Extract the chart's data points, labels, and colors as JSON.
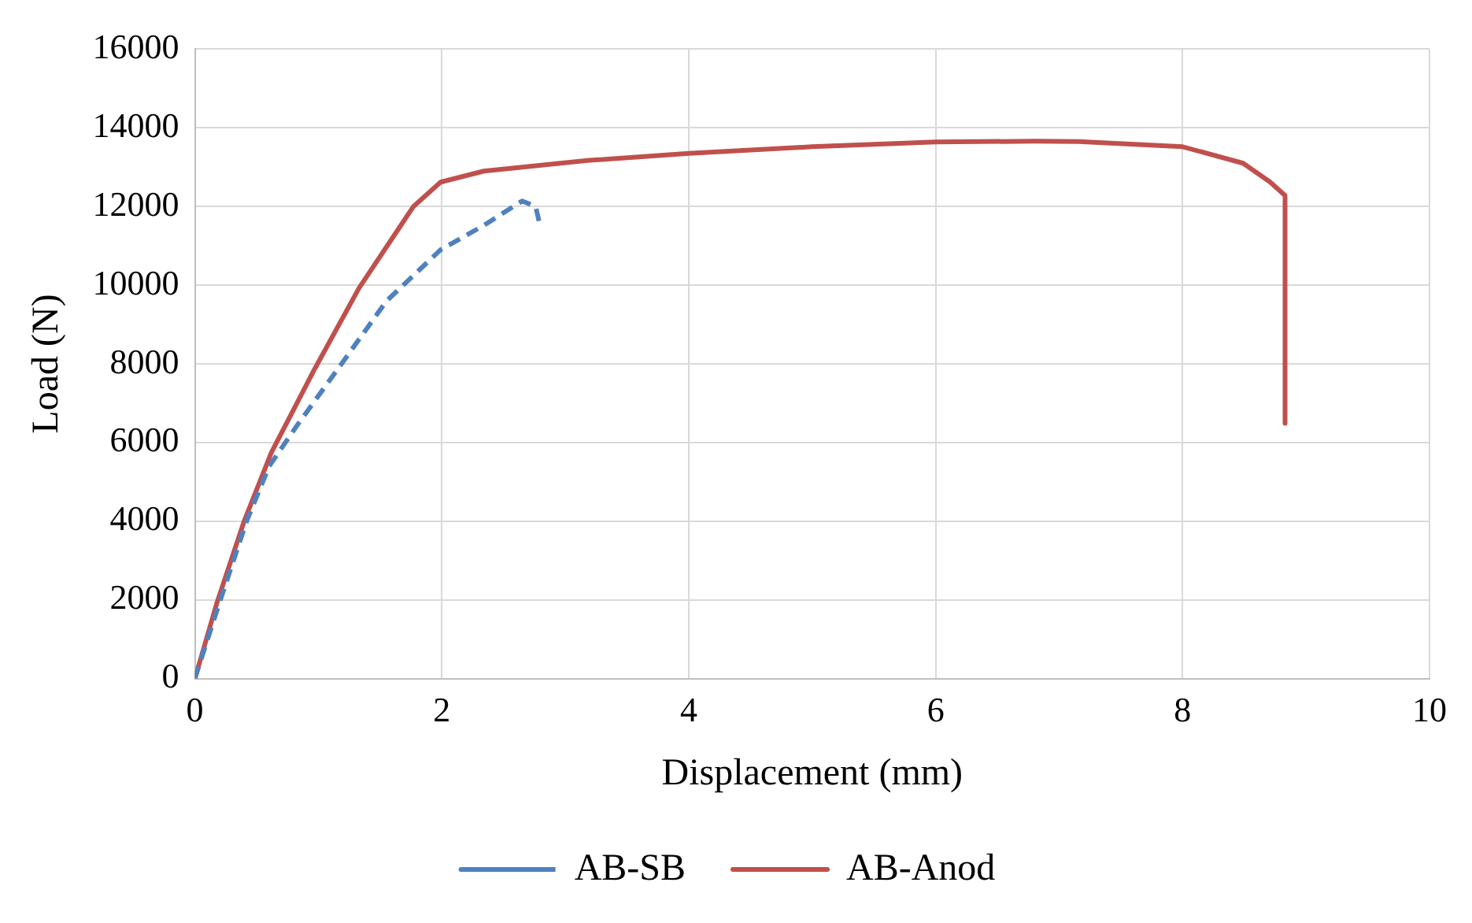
{
  "chart_data": {
    "type": "line",
    "xlabel": "Displacement (mm)",
    "ylabel": "Load (N)",
    "xlim": [
      0,
      10
    ],
    "xticks": [
      0,
      2,
      4,
      6,
      8,
      10
    ],
    "ylim": [
      0,
      16000
    ],
    "yticks": [
      0,
      2000,
      4000,
      6000,
      8000,
      10000,
      12000,
      14000,
      16000
    ],
    "grid": true,
    "legend": "bottom",
    "marker": "none",
    "series": [
      {
        "name": "AB-SB",
        "color": "#4f81bd",
        "line_style": "dashed",
        "x": [
          0,
          0.2,
          0.42,
          0.6,
          0.84,
          1.19,
          1.55,
          1.99,
          2.34,
          2.65,
          2.76,
          2.79
        ],
        "values": [
          0,
          1940,
          4010,
          5390,
          6490,
          8010,
          9590,
          10900,
          11520,
          12140,
          12000,
          11590
        ]
      },
      {
        "name": "AB-Anod",
        "color": "#c0504d",
        "line_style": "solid",
        "x": [
          0,
          0.18,
          0.4,
          0.62,
          0.97,
          1.33,
          1.77,
          1.99,
          2.34,
          3.18,
          4,
          5,
          6,
          6.8,
          7.16,
          8,
          8.49,
          8.71,
          8.83,
          8.83
        ],
        "values": [
          0,
          1940,
          4010,
          5750,
          7870,
          9930,
          12000,
          12620,
          12900,
          13170,
          13350,
          13520,
          13640,
          13660,
          13650,
          13520,
          13100,
          12620,
          12280,
          6490
        ]
      }
    ]
  }
}
